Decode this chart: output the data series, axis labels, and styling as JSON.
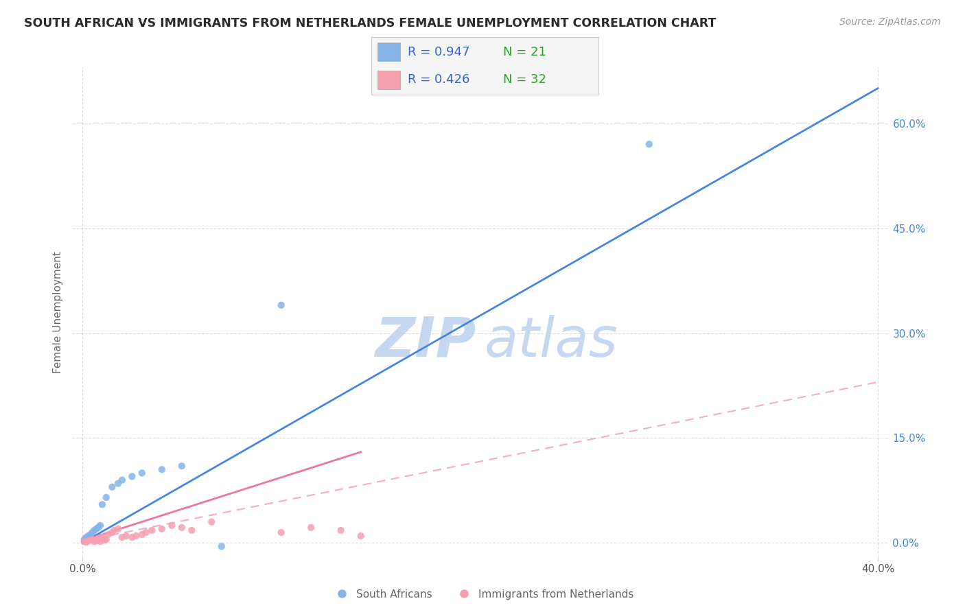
{
  "title": "SOUTH AFRICAN VS IMMIGRANTS FROM NETHERLANDS FEMALE UNEMPLOYMENT CORRELATION CHART",
  "source": "Source: ZipAtlas.com",
  "ylabel": "Female Unemployment",
  "r1": "0.947",
  "n1": "21",
  "r2": "0.426",
  "n2": "32",
  "blue_scatter": [
    [
      0.001,
      0.005
    ],
    [
      0.002,
      0.008
    ],
    [
      0.003,
      0.01
    ],
    [
      0.004,
      0.012
    ],
    [
      0.005,
      0.015
    ],
    [
      0.006,
      0.018
    ],
    [
      0.007,
      0.02
    ],
    [
      0.008,
      0.022
    ],
    [
      0.009,
      0.025
    ],
    [
      0.01,
      0.055
    ],
    [
      0.012,
      0.065
    ],
    [
      0.015,
      0.08
    ],
    [
      0.018,
      0.085
    ],
    [
      0.02,
      0.09
    ],
    [
      0.025,
      0.095
    ],
    [
      0.03,
      0.1
    ],
    [
      0.04,
      0.105
    ],
    [
      0.05,
      0.11
    ],
    [
      0.1,
      0.34
    ],
    [
      0.07,
      -0.005
    ],
    [
      0.285,
      0.57
    ]
  ],
  "pink_scatter": [
    [
      0.001,
      0.002
    ],
    [
      0.002,
      0.001
    ],
    [
      0.003,
      0.003
    ],
    [
      0.004,
      0.004
    ],
    [
      0.005,
      0.005
    ],
    [
      0.006,
      0.002
    ],
    [
      0.007,
      0.003
    ],
    [
      0.008,
      0.006
    ],
    [
      0.009,
      0.002
    ],
    [
      0.01,
      0.008
    ],
    [
      0.011,
      0.004
    ],
    [
      0.012,
      0.005
    ],
    [
      0.013,
      0.012
    ],
    [
      0.015,
      0.015
    ],
    [
      0.016,
      0.018
    ],
    [
      0.018,
      0.02
    ],
    [
      0.02,
      0.008
    ],
    [
      0.022,
      0.01
    ],
    [
      0.025,
      0.008
    ],
    [
      0.027,
      0.01
    ],
    [
      0.03,
      0.012
    ],
    [
      0.032,
      0.015
    ],
    [
      0.035,
      0.018
    ],
    [
      0.04,
      0.02
    ],
    [
      0.045,
      0.025
    ],
    [
      0.05,
      0.022
    ],
    [
      0.055,
      0.018
    ],
    [
      0.065,
      0.03
    ],
    [
      0.1,
      0.015
    ],
    [
      0.115,
      0.022
    ],
    [
      0.13,
      0.018
    ],
    [
      0.14,
      0.01
    ]
  ],
  "blue_line_x": [
    0.0,
    0.4
  ],
  "blue_line_y": [
    0.0,
    0.65
  ],
  "pink_solid_line_x": [
    0.0,
    0.14
  ],
  "pink_solid_line_y": [
    0.003,
    0.13
  ],
  "pink_dashed_line_x": [
    0.0,
    0.4
  ],
  "pink_dashed_line_y": [
    0.003,
    0.23
  ],
  "xlim": [
    -0.005,
    0.405
  ],
  "ylim": [
    -0.02,
    0.68
  ],
  "right_yticks": [
    0.0,
    0.15,
    0.3,
    0.45,
    0.6
  ],
  "right_yticklabels": [
    "0.0%",
    "15.0%",
    "30.0%",
    "45.0%",
    "60.0%"
  ],
  "watermark_zip_color": "#c5d8ef",
  "watermark_atlas_color": "#c5d8ef",
  "blue_scatter_color": "#85b4e8",
  "pink_scatter_color": "#f4a0b0",
  "blue_line_color": "#4488dd",
  "pink_line_color": "#ee7799",
  "title_color": "#2b2b2b",
  "source_color": "#999999",
  "grid_color": "#cccccc",
  "legend_r_color": "#3366cc",
  "legend_bg": "#f5f5f5",
  "axis_label_color": "#666666",
  "tick_color": "#555555"
}
